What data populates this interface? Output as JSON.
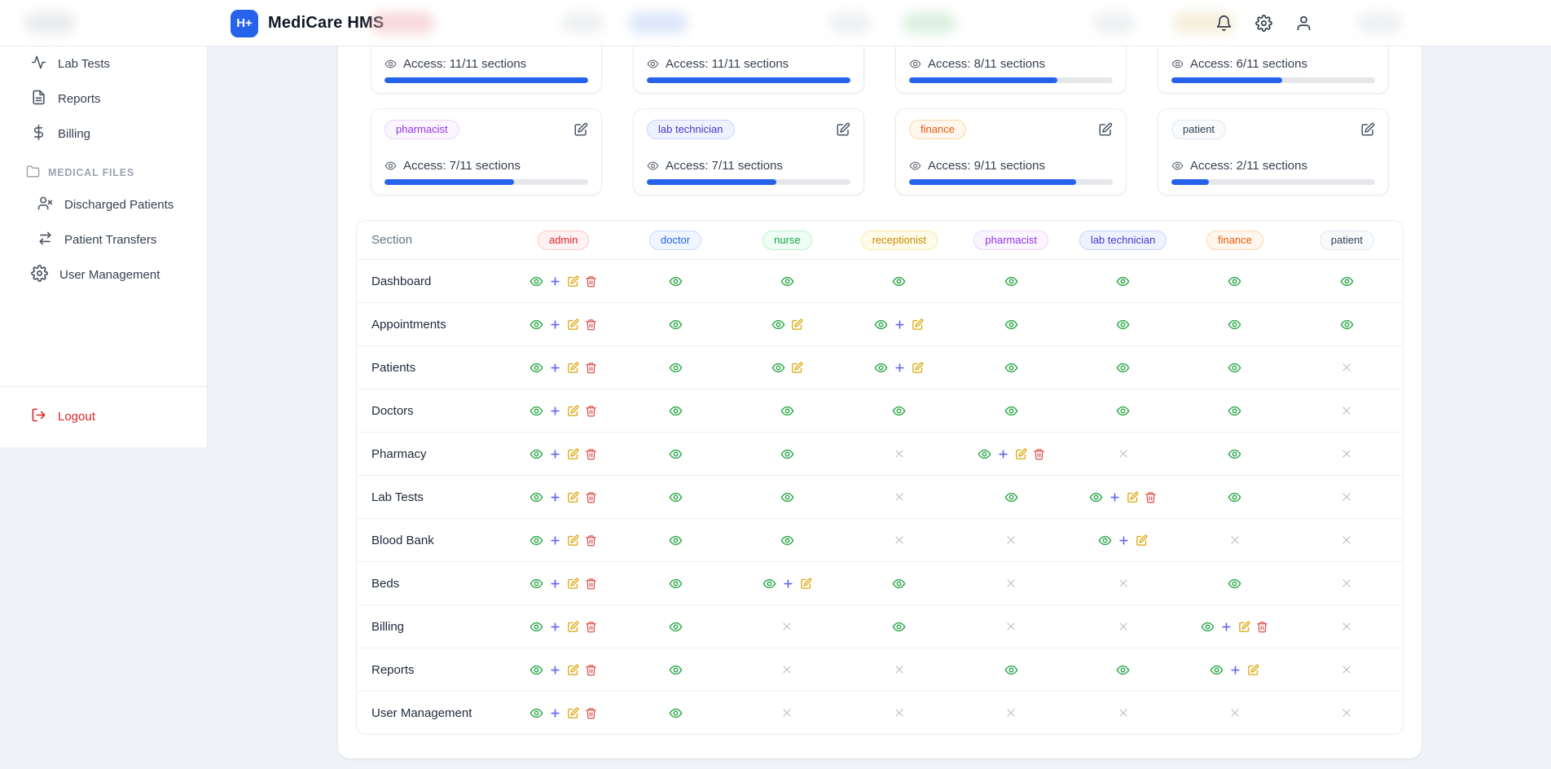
{
  "header": {
    "logo_text": "H+",
    "app_title": "MediCare HMS"
  },
  "sidebar": {
    "items": [
      {
        "label": "Lab Tests"
      },
      {
        "label": "Reports"
      },
      {
        "label": "Billing"
      }
    ],
    "section_label": "MEDICAL FILES",
    "section_items": [
      {
        "label": "Discharged Patients"
      },
      {
        "label": "Patient Transfers"
      },
      {
        "label": "User Management"
      }
    ],
    "logout_label": "Logout"
  },
  "role_cards": {
    "row1": [
      {
        "access_text": "Access: 11/11 sections",
        "progress_pct": 100
      },
      {
        "access_text": "Access: 11/11 sections",
        "progress_pct": 100
      },
      {
        "access_text": "Access: 8/11 sections",
        "progress_pct": 72.7
      },
      {
        "access_text": "Access: 6/11 sections",
        "progress_pct": 54.5
      }
    ],
    "row2": [
      {
        "badge": "pharmacist",
        "access_text": "Access: 7/11 sections",
        "progress_pct": 63.6
      },
      {
        "badge": "lab technician",
        "access_text": "Access: 7/11 sections",
        "progress_pct": 63.6
      },
      {
        "badge": "finance",
        "access_text": "Access: 9/11 sections",
        "progress_pct": 81.8
      },
      {
        "badge": "patient",
        "access_text": "Access: 2/11 sections",
        "progress_pct": 18.2
      }
    ]
  },
  "colors": {
    "accent_blue": "#2563eb",
    "progress_fill": "#2563eb",
    "logout_red": "#dc2626",
    "permission_icons": {
      "view": "#2ba84a",
      "create": "#6366f1",
      "edit": "#d9a406",
      "delete": "#df4f4f",
      "none": "#b6bcc6"
    }
  },
  "badge_colors": {
    "admin": {
      "bg": "#fef2f2",
      "fg": "#dc2626",
      "border": "#f6caca"
    },
    "doctor": {
      "bg": "#eff6ff",
      "fg": "#2563eb",
      "border": "#c3dafe"
    },
    "nurse": {
      "bg": "#f0fdf4",
      "fg": "#16a34a",
      "border": "#bbf0d0"
    },
    "receptionist": {
      "bg": "#fefce8",
      "fg": "#ca8a04",
      "border": "#fbe9a9"
    },
    "pharmacist": {
      "bg": "#faf5ff",
      "fg": "#9333ea",
      "border": "#e9d5ff"
    },
    "lab technician": {
      "bg": "#eef2ff",
      "fg": "#4338ca",
      "border": "#c7d2fe"
    },
    "finance": {
      "bg": "#fff7ed",
      "fg": "#ea580c",
      "border": "#fed7aa"
    },
    "patient": {
      "bg": "#f8fafc",
      "fg": "#334155",
      "border": "#e2e8f0"
    }
  },
  "table": {
    "section_header": "Section",
    "roles": [
      "admin",
      "doctor",
      "nurse",
      "receptionist",
      "pharmacist",
      "lab technician",
      "finance",
      "patient"
    ],
    "legend": {
      "v": "view",
      "c": "create",
      "e": "edit",
      "d": "delete",
      "": "no access"
    },
    "rows": [
      {
        "section": "Dashboard",
        "perms": [
          "vced",
          "v",
          "v",
          "v",
          "v",
          "v",
          "v",
          "v"
        ]
      },
      {
        "section": "Appointments",
        "perms": [
          "vced",
          "v",
          "ve",
          "vce",
          "v",
          "v",
          "v",
          "v"
        ]
      },
      {
        "section": "Patients",
        "perms": [
          "vced",
          "v",
          "ve",
          "vce",
          "v",
          "v",
          "v",
          ""
        ]
      },
      {
        "section": "Doctors",
        "perms": [
          "vced",
          "v",
          "v",
          "v",
          "v",
          "v",
          "v",
          ""
        ]
      },
      {
        "section": "Pharmacy",
        "perms": [
          "vced",
          "v",
          "v",
          "",
          "vced",
          "",
          "v",
          ""
        ]
      },
      {
        "section": "Lab Tests",
        "perms": [
          "vced",
          "v",
          "v",
          "",
          "v",
          "vced",
          "v",
          ""
        ]
      },
      {
        "section": "Blood Bank",
        "perms": [
          "vced",
          "v",
          "v",
          "",
          "",
          "vce",
          "",
          ""
        ]
      },
      {
        "section": "Beds",
        "perms": [
          "vced",
          "v",
          "vce",
          "v",
          "",
          "",
          "v",
          ""
        ]
      },
      {
        "section": "Billing",
        "perms": [
          "vced",
          "v",
          "",
          "v",
          "",
          "",
          "vced",
          ""
        ]
      },
      {
        "section": "Reports",
        "perms": [
          "vced",
          "v",
          "",
          "",
          "v",
          "v",
          "vce",
          ""
        ]
      },
      {
        "section": "User Management",
        "perms": [
          "vced",
          "v",
          "",
          "",
          "",
          "",
          "",
          ""
        ]
      }
    ]
  }
}
